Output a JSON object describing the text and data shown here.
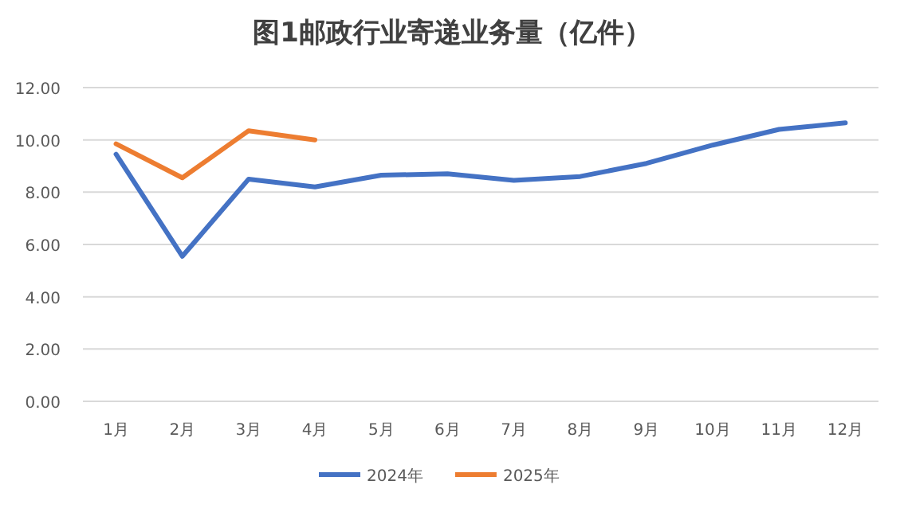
{
  "chart_data": {
    "type": "line",
    "title": "图1邮政行业寄递业务量（亿件）",
    "categories": [
      "1月",
      "2月",
      "3月",
      "4月",
      "5月",
      "6月",
      "7月",
      "8月",
      "9月",
      "10月",
      "11月",
      "12月"
    ],
    "series": [
      {
        "name": "2024年",
        "color": "#4472c4",
        "values": [
          9.45,
          5.55,
          8.5,
          8.2,
          8.65,
          8.7,
          8.45,
          8.6,
          9.1,
          9.8,
          10.4,
          10.65
        ]
      },
      {
        "name": "2025年",
        "color": "#ed7d31",
        "values": [
          9.85,
          8.55,
          10.35,
          10.0,
          null,
          null,
          null,
          null,
          null,
          null,
          null,
          null
        ]
      }
    ],
    "ylim": [
      0,
      12
    ],
    "yticks": [
      {
        "value": 0,
        "label": "0.00"
      },
      {
        "value": 2,
        "label": "2.00"
      },
      {
        "value": 4,
        "label": "4.00"
      },
      {
        "value": 6,
        "label": "6.00"
      },
      {
        "value": 8,
        "label": "8.00"
      },
      {
        "value": 10,
        "label": "10.00"
      },
      {
        "value": 12,
        "label": "12.00"
      }
    ],
    "grid": "y",
    "legend": "bottom",
    "marker": "none",
    "line_style": "solid"
  }
}
